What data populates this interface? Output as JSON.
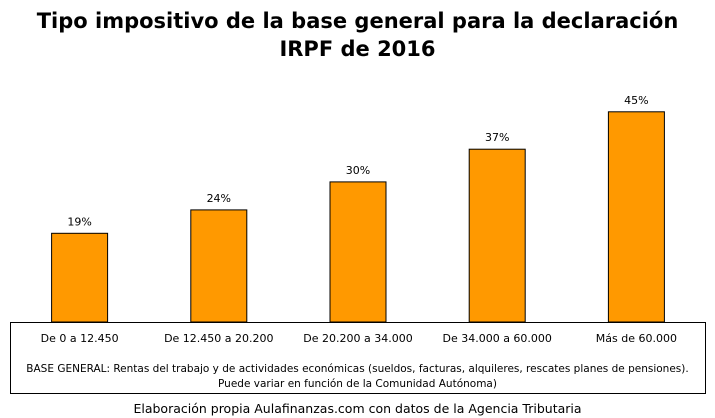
{
  "chart_data": {
    "type": "bar",
    "title": "Tipo impositivo de la base general para la declaración",
    "subtitle": "IRPF de 2016",
    "categories": [
      "De 0 a 12.450",
      "De 12.450 a 20.200",
      "De 20.200 a 34.000",
      "De 34.000 a 60.000",
      "Más de 60.000"
    ],
    "values": [
      19,
      24,
      30,
      37,
      45
    ],
    "data_labels": [
      "19%",
      "24%",
      "30%",
      "37%",
      "45%"
    ],
    "ylim": [
      0,
      50
    ],
    "grid": false,
    "legend": "none",
    "bar_color": "#ff9900"
  },
  "note": {
    "line1": "BASE GENERAL:  Rentas del trabajo  y de actividades económicas (sueldos, facturas, alquileres, rescates planes de pensiones).",
    "line2": "Puede variar en función de la Comunidad Autónoma)"
  },
  "footer": "Elaboración propia Aulafinanzas.com con datos de la Agencia Tributaria"
}
